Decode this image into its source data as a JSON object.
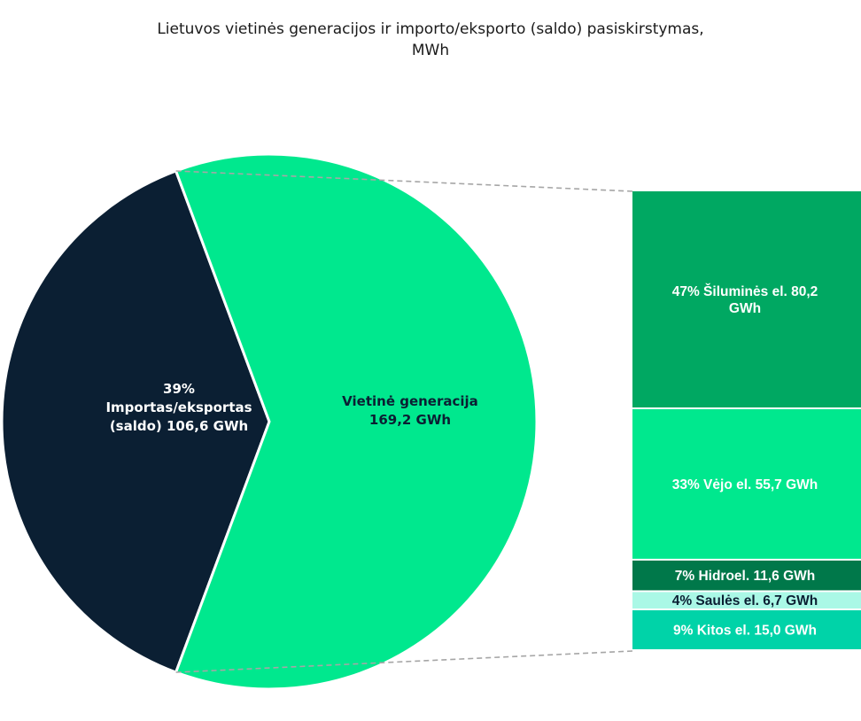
{
  "chart_data": {
    "type": "pie",
    "title_lines": [
      "Lietuvos vietinės generacijos ir importo/eksporto (saldo) pasiskirstymas,",
      "MWh"
    ],
    "pie": {
      "slices": [
        {
          "key": "import",
          "value": 106.6,
          "label_lines": [
            "39%",
            "Importas/eksportas",
            "(saldo)  106,6 GWh"
          ],
          "color": "#0b1f33",
          "text_color": "#ffffff"
        },
        {
          "key": "local",
          "value": 169.2,
          "label_lines": [
            "Vietinė generacija",
            "169,2 GWh"
          ],
          "color": "#00e88e",
          "text_color": "#0b1f33"
        }
      ]
    },
    "breakdown": {
      "parent": "local",
      "segments": [
        {
          "value": 80.2,
          "label_lines": [
            "47% Šiluminės el.  80,2",
            "GWh"
          ],
          "color": "#00a862",
          "text_color": "#ffffff"
        },
        {
          "value": 55.7,
          "label_lines": [
            "33% Vėjo el.  55,7 GWh"
          ],
          "color": "#00e88e",
          "text_color": "#ffffff"
        },
        {
          "value": 11.6,
          "label_lines": [
            "7% Hidroel.  11,6 GWh"
          ],
          "color": "#00784a",
          "text_color": "#ffffff"
        },
        {
          "value": 6.7,
          "label_lines": [
            "4% Saulės el.  6,7 GWh"
          ],
          "color": "#aaf8e6",
          "text_color": "#0b1f33"
        },
        {
          "value": 15.0,
          "label_lines": [
            "9% Kitos el.  15,0 GWh"
          ],
          "color": "#00d3a8",
          "text_color": "#ffffff"
        }
      ]
    },
    "connector_color": "#a6a6a6"
  }
}
